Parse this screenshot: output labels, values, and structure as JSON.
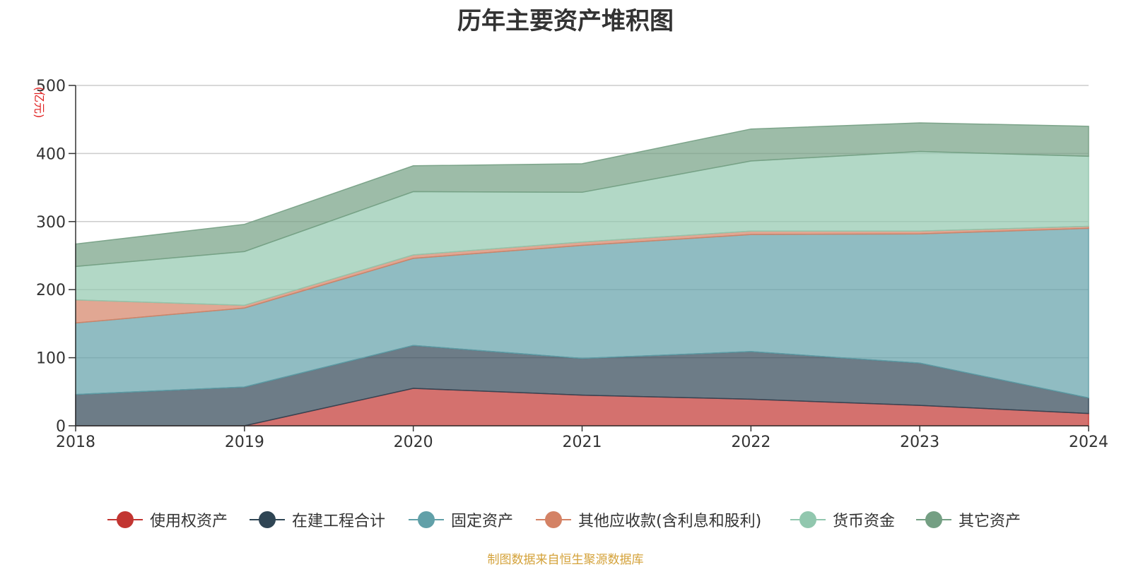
{
  "chart_data": {
    "type": "area",
    "stacked": true,
    "title": "历年主要资产堆积图",
    "ylabel": "(亿元)",
    "x": [
      "2018",
      "2019",
      "2020",
      "2021",
      "2022",
      "2023",
      "2024"
    ],
    "ylim": [
      0,
      500
    ],
    "yticks": [
      "0",
      "100",
      "200",
      "300",
      "400",
      "500"
    ],
    "grid": true,
    "legend_position": "bottom",
    "series": [
      {
        "name": "使用权资产",
        "color": "#c23531",
        "values": [
          0,
          0,
          55,
          45,
          39,
          30,
          18
        ]
      },
      {
        "name": "在建工程合计",
        "color": "#2f4554",
        "values": [
          46,
          57,
          63,
          54,
          70,
          62,
          23
        ]
      },
      {
        "name": "固定资产",
        "color": "#61a0a8",
        "values": [
          105,
          116,
          128,
          166,
          172,
          190,
          249
        ]
      },
      {
        "name": "其他应收款(含利息和股利)",
        "color": "#d48265",
        "values": [
          34,
          4,
          5,
          5,
          5,
          4,
          3
        ]
      },
      {
        "name": "货币资金",
        "color": "#91c7ae",
        "values": [
          49,
          79,
          93,
          73,
          103,
          117,
          103
        ]
      },
      {
        "name": "其它资产",
        "color": "#749f83",
        "values": [
          33,
          40,
          38,
          42,
          47,
          42,
          44
        ]
      }
    ],
    "source": "制图数据来自恒生聚源数据库"
  }
}
